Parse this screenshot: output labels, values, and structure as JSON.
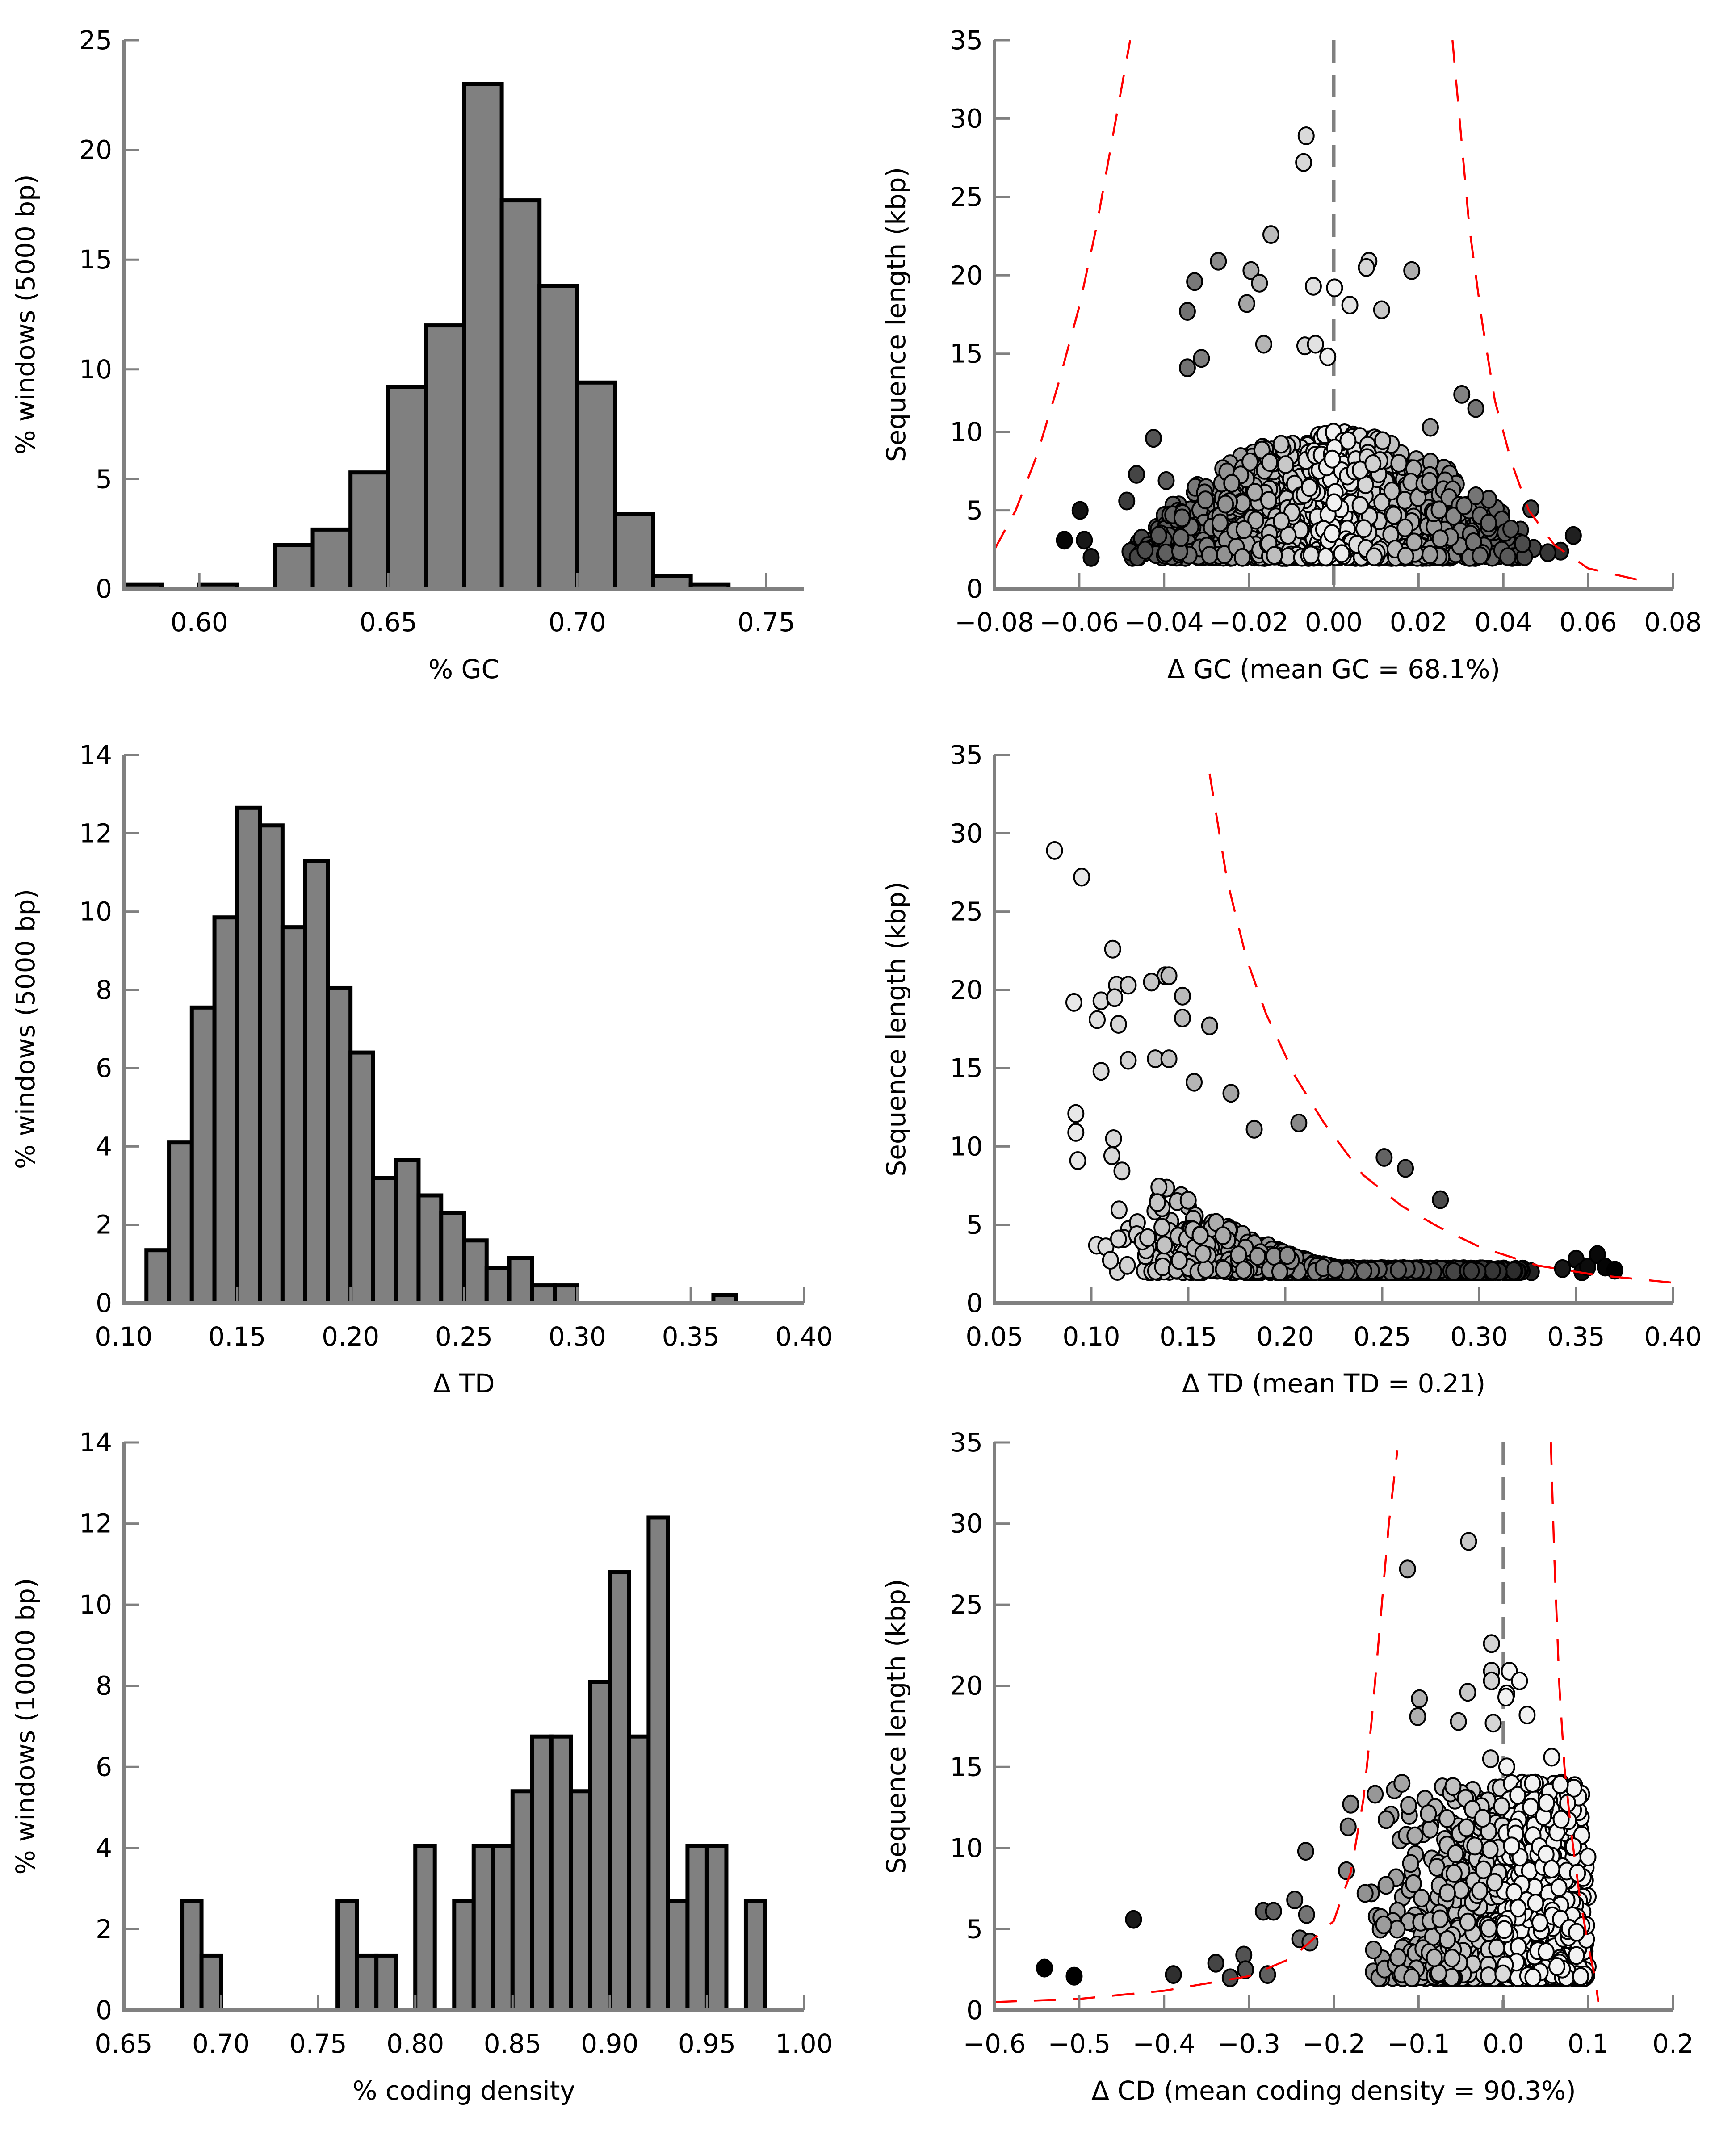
{
  "figure": {
    "layout": "3 rows x 2 columns",
    "bar_fill": "#808080",
    "bar_edge": "#000000",
    "axis_color": "#808080",
    "threshold_curve_color": "#ff0000",
    "mean_line_color": "#808080"
  },
  "chart_data": [
    {
      "id": "gc-hist",
      "type": "bar",
      "title": "",
      "xlabel": "% GC",
      "ylabel": "% windows (5000 bp)",
      "xlim": [
        0.58,
        0.76
      ],
      "ylim": [
        0,
        25
      ],
      "xticks": [
        "0.60",
        "0.65",
        "0.70",
        "0.75"
      ],
      "xtick_values": [
        0.6,
        0.65,
        0.7,
        0.75
      ],
      "yticks": [
        "0",
        "5",
        "10",
        "15",
        "20",
        "25"
      ],
      "ytick_values": [
        0,
        5,
        10,
        15,
        20,
        25
      ],
      "bin_width": 0.01,
      "bins": [
        {
          "x0": 0.58,
          "value": 0.2
        },
        {
          "x0": 0.6,
          "value": 0.2
        },
        {
          "x0": 0.62,
          "value": 2.0
        },
        {
          "x0": 0.63,
          "value": 2.7
        },
        {
          "x0": 0.64,
          "value": 5.3
        },
        {
          "x0": 0.65,
          "value": 9.2
        },
        {
          "x0": 0.66,
          "value": 12.0
        },
        {
          "x0": 0.67,
          "value": 23.0
        },
        {
          "x0": 0.68,
          "value": 17.7
        },
        {
          "x0": 0.69,
          "value": 13.8
        },
        {
          "x0": 0.7,
          "value": 9.4
        },
        {
          "x0": 0.71,
          "value": 3.4
        },
        {
          "x0": 0.72,
          "value": 0.6
        },
        {
          "x0": 0.73,
          "value": 0.2
        }
      ]
    },
    {
      "id": "gc-scatter",
      "type": "scatter",
      "title": "",
      "xlabel": "Δ GC (mean GC = 68.1%)",
      "ylabel": "Sequence length (kbp)",
      "xlim": [
        -0.08,
        0.08
      ],
      "ylim": [
        0,
        35
      ],
      "xticks": [
        "−0.08",
        "−0.06",
        "−0.04",
        "−0.02",
        "0.00",
        "0.02",
        "0.04",
        "0.06",
        "0.08"
      ],
      "xtick_values": [
        -0.08,
        -0.06,
        -0.04,
        -0.02,
        0.0,
        0.02,
        0.04,
        0.06,
        0.08
      ],
      "yticks": [
        "0",
        "5",
        "10",
        "15",
        "20",
        "25",
        "30",
        "35"
      ],
      "ytick_values": [
        0,
        5,
        10,
        15,
        20,
        25,
        30,
        35
      ],
      "mean_line_x": 0.0,
      "color_encoding": "point fill darkens with |Δ| (white near 0, black at extremes)",
      "threshold_curves": [
        {
          "side": "left",
          "points": [
            [
              -0.08,
              2.5
            ],
            [
              -0.075,
              5
            ],
            [
              -0.07,
              8.5
            ],
            [
              -0.065,
              13
            ],
            [
              -0.06,
              18
            ],
            [
              -0.056,
              23
            ],
            [
              -0.052,
              29
            ],
            [
              -0.048,
              35
            ]
          ]
        },
        {
          "side": "right",
          "points": [
            [
              0.028,
              35
            ],
            [
              0.03,
              29
            ],
            [
              0.032,
              23
            ],
            [
              0.035,
              17
            ],
            [
              0.038,
              12
            ],
            [
              0.042,
              8
            ],
            [
              0.046,
              5
            ],
            [
              0.052,
              2.8
            ],
            [
              0.06,
              1.3
            ],
            [
              0.073,
              0.5
            ]
          ]
        }
      ],
      "outlier_points": [
        [
          -0.0065,
          28.9
        ],
        [
          -0.0071,
          27.2
        ],
        [
          -0.0148,
          22.6
        ],
        [
          -0.0272,
          20.9
        ],
        [
          -0.0195,
          20.3
        ],
        [
          -0.0328,
          19.6
        ],
        [
          -0.0175,
          19.5
        ],
        [
          -0.0048,
          19.3
        ],
        [
          0.0002,
          19.2
        ],
        [
          0.0083,
          20.9
        ],
        [
          0.0077,
          20.5
        ],
        [
          0.0184,
          20.3
        ],
        [
          -0.0205,
          18.2
        ],
        [
          0.0038,
          18.1
        ],
        [
          0.0113,
          17.8
        ],
        [
          -0.0345,
          17.7
        ],
        [
          -0.0165,
          15.6
        ],
        [
          -0.0068,
          15.5
        ],
        [
          -0.0043,
          15.6
        ],
        [
          -0.0014,
          14.8
        ],
        [
          -0.0312,
          14.7
        ],
        [
          -0.0345,
          14.1
        ],
        [
          0.0302,
          12.4
        ],
        [
          0.0335,
          11.5
        ],
        [
          0.0228,
          10.3
        ],
        [
          -0.0425,
          9.6
        ],
        [
          -0.0488,
          5.6
        ],
        [
          -0.0598,
          5.0
        ],
        [
          -0.0635,
          3.1
        ],
        [
          -0.0588,
          3.1
        ],
        [
          -0.0572,
          2.0
        ],
        [
          0.0465,
          5.1
        ],
        [
          0.0565,
          3.4
        ],
        [
          0.0535,
          2.4
        ],
        [
          0.0505,
          2.3
        ],
        [
          -0.0465,
          7.3
        ],
        [
          -0.0395,
          6.9
        ]
      ],
      "bulk_region": {
        "x_range": [
          -0.05,
          0.05
        ],
        "y_range": [
          2.0,
          10.0
        ],
        "approx_points": 1200
      }
    },
    {
      "id": "td-hist",
      "type": "bar",
      "title": "",
      "xlabel": "Δ TD",
      "ylabel": "% windows (5000 bp)",
      "xlim": [
        0.1,
        0.4
      ],
      "ylim": [
        0,
        14
      ],
      "xticks": [
        "0.10",
        "0.15",
        "0.20",
        "0.25",
        "0.30",
        "0.35",
        "0.40"
      ],
      "xtick_values": [
        0.1,
        0.15,
        0.2,
        0.25,
        0.3,
        0.35,
        0.4
      ],
      "yticks": [
        "0",
        "2",
        "4",
        "6",
        "8",
        "10",
        "12",
        "14"
      ],
      "ytick_values": [
        0,
        2,
        4,
        6,
        8,
        10,
        12,
        14
      ],
      "bin_width": 0.01,
      "bins": [
        {
          "x0": 0.11,
          "value": 1.35
        },
        {
          "x0": 0.12,
          "value": 4.1
        },
        {
          "x0": 0.13,
          "value": 7.55
        },
        {
          "x0": 0.14,
          "value": 9.85
        },
        {
          "x0": 0.15,
          "value": 12.65
        },
        {
          "x0": 0.16,
          "value": 12.2
        },
        {
          "x0": 0.17,
          "value": 9.6
        },
        {
          "x0": 0.18,
          "value": 11.3
        },
        {
          "x0": 0.19,
          "value": 8.05
        },
        {
          "x0": 0.2,
          "value": 6.4
        },
        {
          "x0": 0.21,
          "value": 3.2
        },
        {
          "x0": 0.22,
          "value": 3.65
        },
        {
          "x0": 0.23,
          "value": 2.75
        },
        {
          "x0": 0.24,
          "value": 2.3
        },
        {
          "x0": 0.25,
          "value": 1.6
        },
        {
          "x0": 0.26,
          "value": 0.9
        },
        {
          "x0": 0.27,
          "value": 1.15
        },
        {
          "x0": 0.28,
          "value": 0.45
        },
        {
          "x0": 0.29,
          "value": 0.45
        },
        {
          "x0": 0.36,
          "value": 0.2
        }
      ]
    },
    {
      "id": "td-scatter",
      "type": "scatter",
      "title": "",
      "xlabel": "Δ TD (mean TD = 0.21)",
      "ylabel": "Sequence length (kbp)",
      "xlim": [
        0.05,
        0.4
      ],
      "ylim": [
        0,
        35
      ],
      "xticks": [
        "0.05",
        "0.10",
        "0.15",
        "0.20",
        "0.25",
        "0.30",
        "0.35",
        "0.40"
      ],
      "xtick_values": [
        0.05,
        0.1,
        0.15,
        0.2,
        0.25,
        0.3,
        0.35,
        0.4
      ],
      "yticks": [
        "0",
        "5",
        "10",
        "15",
        "20",
        "25",
        "30",
        "35"
      ],
      "ytick_values": [
        0,
        5,
        10,
        15,
        20,
        25,
        30,
        35
      ],
      "color_encoding": "point fill darkens as Δ TD increases (white at low TD, black at high TD)",
      "threshold_curves": [
        {
          "side": "right",
          "points": [
            [
              0.161,
              33.8
            ],
            [
              0.17,
              27
            ],
            [
              0.18,
              22
            ],
            [
              0.19,
              18.5
            ],
            [
              0.205,
              14.5
            ],
            [
              0.22,
              11.5
            ],
            [
              0.24,
              8.2
            ],
            [
              0.26,
              6.2
            ],
            [
              0.28,
              4.8
            ],
            [
              0.3,
              3.6
            ],
            [
              0.33,
              2.4
            ],
            [
              0.36,
              1.8
            ],
            [
              0.4,
              1.3
            ]
          ]
        }
      ],
      "outlier_points": [
        [
          0.081,
          28.9
        ],
        [
          0.095,
          27.2
        ],
        [
          0.111,
          22.6
        ],
        [
          0.138,
          20.9
        ],
        [
          0.14,
          20.9
        ],
        [
          0.131,
          20.5
        ],
        [
          0.113,
          20.3
        ],
        [
          0.119,
          20.3
        ],
        [
          0.147,
          19.6
        ],
        [
          0.091,
          19.2
        ],
        [
          0.105,
          19.3
        ],
        [
          0.112,
          19.5
        ],
        [
          0.103,
          18.1
        ],
        [
          0.147,
          18.2
        ],
        [
          0.114,
          17.8
        ],
        [
          0.161,
          17.7
        ],
        [
          0.119,
          15.5
        ],
        [
          0.133,
          15.6
        ],
        [
          0.14,
          15.6
        ],
        [
          0.105,
          14.8
        ],
        [
          0.153,
          14.1
        ],
        [
          0.172,
          13.4
        ],
        [
          0.092,
          12.1
        ],
        [
          0.092,
          10.9
        ],
        [
          0.093,
          9.1
        ],
        [
          0.207,
          11.5
        ],
        [
          0.184,
          11.1
        ],
        [
          0.251,
          9.3
        ],
        [
          0.262,
          8.6
        ],
        [
          0.28,
          6.6
        ],
        [
          0.343,
          2.2
        ],
        [
          0.35,
          2.8
        ],
        [
          0.353,
          2.0
        ],
        [
          0.356,
          2.3
        ],
        [
          0.361,
          3.1
        ],
        [
          0.365,
          2.3
        ],
        [
          0.37,
          2.1
        ]
      ],
      "bulk_region": {
        "x_range": [
          0.1,
          0.33
        ],
        "y_range": [
          2.0,
          10.0
        ],
        "approx_points": 1200
      }
    },
    {
      "id": "cd-hist",
      "type": "bar",
      "title": "",
      "xlabel": "% coding density",
      "ylabel": "% windows (10000 bp)",
      "xlim": [
        0.65,
        1.0
      ],
      "ylim": [
        0,
        14
      ],
      "xticks": [
        "0.65",
        "0.70",
        "0.75",
        "0.80",
        "0.85",
        "0.90",
        "0.95",
        "1.00"
      ],
      "xtick_values": [
        0.65,
        0.7,
        0.75,
        0.8,
        0.85,
        0.9,
        0.95,
        1.0
      ],
      "yticks": [
        "0",
        "2",
        "4",
        "6",
        "8",
        "10",
        "12",
        "14"
      ],
      "ytick_values": [
        0,
        2,
        4,
        6,
        8,
        10,
        12,
        14
      ],
      "bin_width": 0.01,
      "bins": [
        {
          "x0": 0.68,
          "value": 2.7
        },
        {
          "x0": 0.69,
          "value": 1.35
        },
        {
          "x0": 0.76,
          "value": 2.7
        },
        {
          "x0": 0.77,
          "value": 1.35
        },
        {
          "x0": 0.78,
          "value": 1.35
        },
        {
          "x0": 0.8,
          "value": 4.05
        },
        {
          "x0": 0.82,
          "value": 2.7
        },
        {
          "x0": 0.83,
          "value": 4.05
        },
        {
          "x0": 0.84,
          "value": 4.05
        },
        {
          "x0": 0.85,
          "value": 5.4
        },
        {
          "x0": 0.86,
          "value": 6.75
        },
        {
          "x0": 0.87,
          "value": 6.75
        },
        {
          "x0": 0.88,
          "value": 5.4
        },
        {
          "x0": 0.89,
          "value": 8.1
        },
        {
          "x0": 0.9,
          "value": 10.8
        },
        {
          "x0": 0.91,
          "value": 6.75
        },
        {
          "x0": 0.92,
          "value": 12.15
        },
        {
          "x0": 0.93,
          "value": 2.7
        },
        {
          "x0": 0.94,
          "value": 4.05
        },
        {
          "x0": 0.95,
          "value": 4.05
        },
        {
          "x0": 0.97,
          "value": 2.7
        }
      ]
    },
    {
      "id": "cd-scatter",
      "type": "scatter",
      "title": "",
      "xlabel": "Δ CD (mean coding density = 90.3%)",
      "ylabel": "Sequence length (kbp)",
      "xlim": [
        -0.6,
        0.2
      ],
      "ylim": [
        0,
        35
      ],
      "xticks": [
        "−0.6",
        "−0.5",
        "−0.4",
        "−0.3",
        "−0.2",
        "−0.1",
        "0.0",
        "0.1",
        "0.2"
      ],
      "xtick_values": [
        -0.6,
        -0.5,
        -0.4,
        -0.3,
        -0.2,
        -0.1,
        0.0,
        0.1,
        0.2
      ],
      "yticks": [
        "0",
        "5",
        "10",
        "15",
        "20",
        "25",
        "30",
        "35"
      ],
      "ytick_values": [
        0,
        5,
        10,
        15,
        20,
        25,
        30,
        35
      ],
      "mean_line_x": 0.0,
      "color_encoding": "point fill darkens as Δ CD becomes more negative",
      "threshold_curves": [
        {
          "side": "left",
          "points": [
            [
              -0.6,
              0.5
            ],
            [
              -0.5,
              0.7
            ],
            [
              -0.4,
              1.2
            ],
            [
              -0.3,
              2.1
            ],
            [
              -0.25,
              3.2
            ],
            [
              -0.2,
              5.5
            ],
            [
              -0.18,
              8.5
            ],
            [
              -0.165,
              13
            ],
            [
              -0.155,
              18
            ],
            [
              -0.145,
              24
            ],
            [
              -0.135,
              30
            ],
            [
              -0.125,
              34.5
            ]
          ]
        },
        {
          "side": "right",
          "points": [
            [
              0.056,
              35
            ],
            [
              0.06,
              28
            ],
            [
              0.066,
              20
            ],
            [
              0.072,
              15
            ],
            [
              0.08,
              11
            ],
            [
              0.09,
              7
            ],
            [
              0.1,
              4
            ],
            [
              0.108,
              2
            ],
            [
              0.112,
              0.5
            ]
          ]
        }
      ],
      "outlier_points": [
        [
          -0.041,
          28.9
        ],
        [
          -0.113,
          27.2
        ],
        [
          -0.014,
          22.6
        ],
        [
          -0.014,
          20.9
        ],
        [
          0.007,
          20.9
        ],
        [
          -0.014,
          20.3
        ],
        [
          0.019,
          20.3
        ],
        [
          -0.042,
          19.6
        ],
        [
          0.004,
          19.5
        ],
        [
          0.003,
          19.3
        ],
        [
          -0.099,
          19.2
        ],
        [
          -0.101,
          18.1
        ],
        [
          0.028,
          18.2
        ],
        [
          -0.053,
          17.8
        ],
        [
          -0.012,
          17.7
        ],
        [
          0.057,
          15.6
        ],
        [
          -0.015,
          15.5
        ],
        [
          0.004,
          15.0
        ],
        [
          -0.18,
          12.7
        ],
        [
          -0.183,
          11.3
        ],
        [
          -0.233,
          9.8
        ],
        [
          -0.185,
          8.6
        ],
        [
          -0.163,
          7.2
        ],
        [
          -0.246,
          6.8
        ],
        [
          -0.283,
          6.1
        ],
        [
          -0.271,
          6.1
        ],
        [
          -0.232,
          5.9
        ],
        [
          -0.436,
          5.6
        ],
        [
          -0.541,
          2.6
        ],
        [
          -0.506,
          2.1
        ],
        [
          -0.389,
          2.2
        ],
        [
          -0.339,
          2.9
        ],
        [
          -0.306,
          3.4
        ],
        [
          -0.304,
          2.5
        ],
        [
          -0.322,
          2.0
        ],
        [
          -0.278,
          2.2
        ],
        [
          -0.24,
          4.4
        ],
        [
          -0.228,
          4.2
        ]
      ],
      "bulk_region": {
        "x_range": [
          -0.16,
          0.1
        ],
        "y_range": [
          2.0,
          14.0
        ],
        "approx_points": 1200
      }
    }
  ]
}
